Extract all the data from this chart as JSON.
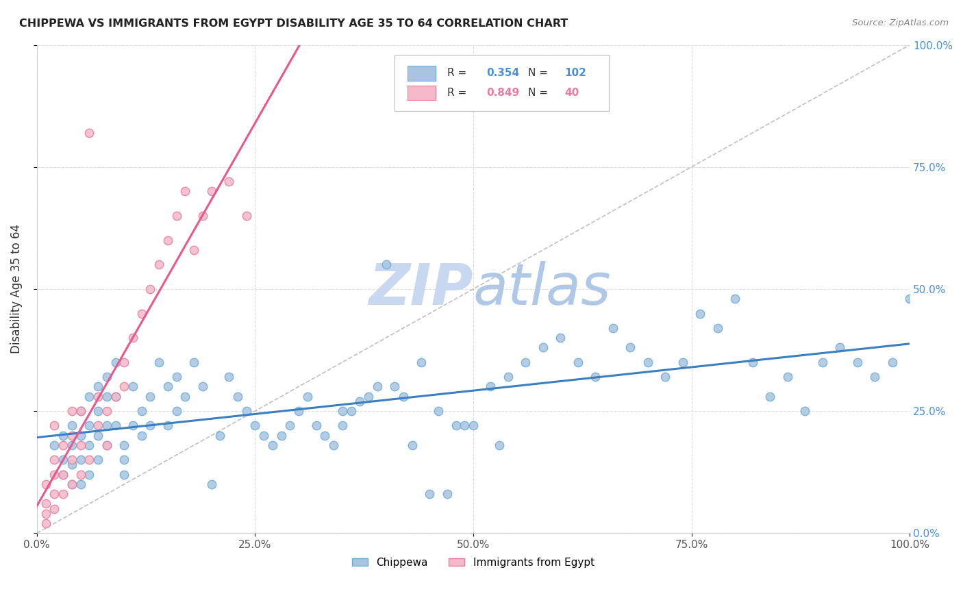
{
  "title": "CHIPPEWA VS IMMIGRANTS FROM EGYPT DISABILITY AGE 35 TO 64 CORRELATION CHART",
  "source": "Source: ZipAtlas.com",
  "ylabel_label": "Disability Age 35 to 64",
  "xlim": [
    0,
    1
  ],
  "ylim": [
    0,
    1
  ],
  "chippewa_color": "#a8c4e0",
  "chippewa_edge_color": "#6aaed6",
  "egypt_color": "#f4b8c8",
  "egypt_edge_color": "#e87da0",
  "trend_blue_color": "#3a7fc1",
  "trend_pink_color": "#e8588a",
  "trend_diagonal_color": "#c0c0c0",
  "R_chippewa": 0.354,
  "N_chippewa": 102,
  "R_egypt": 0.849,
  "N_egypt": 40,
  "chippewa_x": [
    0.02,
    0.03,
    0.03,
    0.03,
    0.04,
    0.04,
    0.04,
    0.04,
    0.05,
    0.05,
    0.05,
    0.05,
    0.06,
    0.06,
    0.06,
    0.06,
    0.07,
    0.07,
    0.07,
    0.07,
    0.08,
    0.08,
    0.08,
    0.08,
    0.09,
    0.09,
    0.09,
    0.1,
    0.1,
    0.1,
    0.11,
    0.11,
    0.12,
    0.12,
    0.13,
    0.13,
    0.14,
    0.15,
    0.15,
    0.16,
    0.16,
    0.17,
    0.18,
    0.19,
    0.2,
    0.21,
    0.22,
    0.23,
    0.24,
    0.25,
    0.26,
    0.27,
    0.28,
    0.29,
    0.3,
    0.31,
    0.32,
    0.33,
    0.34,
    0.35,
    0.37,
    0.39,
    0.4,
    0.42,
    0.44,
    0.46,
    0.48,
    0.5,
    0.52,
    0.54,
    0.56,
    0.58,
    0.6,
    0.62,
    0.64,
    0.66,
    0.68,
    0.7,
    0.72,
    0.74,
    0.76,
    0.78,
    0.8,
    0.82,
    0.84,
    0.86,
    0.88,
    0.9,
    0.92,
    0.94,
    0.96,
    0.98,
    1.0,
    0.35,
    0.36,
    0.38,
    0.41,
    0.43,
    0.45,
    0.47,
    0.49,
    0.53
  ],
  "chippewa_y": [
    0.18,
    0.2,
    0.15,
    0.12,
    0.22,
    0.18,
    0.14,
    0.1,
    0.25,
    0.2,
    0.15,
    0.1,
    0.28,
    0.22,
    0.18,
    0.12,
    0.3,
    0.25,
    0.2,
    0.15,
    0.32,
    0.28,
    0.22,
    0.18,
    0.35,
    0.28,
    0.22,
    0.18,
    0.15,
    0.12,
    0.3,
    0.22,
    0.25,
    0.2,
    0.28,
    0.22,
    0.35,
    0.3,
    0.22,
    0.32,
    0.25,
    0.28,
    0.35,
    0.3,
    0.1,
    0.2,
    0.32,
    0.28,
    0.25,
    0.22,
    0.2,
    0.18,
    0.2,
    0.22,
    0.25,
    0.28,
    0.22,
    0.2,
    0.18,
    0.25,
    0.27,
    0.3,
    0.55,
    0.28,
    0.35,
    0.25,
    0.22,
    0.22,
    0.3,
    0.32,
    0.35,
    0.38,
    0.4,
    0.35,
    0.32,
    0.42,
    0.38,
    0.35,
    0.32,
    0.35,
    0.45,
    0.42,
    0.48,
    0.35,
    0.28,
    0.32,
    0.25,
    0.35,
    0.38,
    0.35,
    0.32,
    0.35,
    0.48,
    0.22,
    0.25,
    0.28,
    0.3,
    0.18,
    0.08,
    0.08,
    0.22,
    0.18
  ],
  "egypt_x": [
    0.01,
    0.01,
    0.01,
    0.01,
    0.02,
    0.02,
    0.02,
    0.02,
    0.02,
    0.03,
    0.03,
    0.03,
    0.04,
    0.04,
    0.04,
    0.04,
    0.05,
    0.05,
    0.05,
    0.06,
    0.06,
    0.07,
    0.07,
    0.08,
    0.08,
    0.09,
    0.1,
    0.1,
    0.11,
    0.12,
    0.13,
    0.14,
    0.15,
    0.16,
    0.17,
    0.18,
    0.19,
    0.2,
    0.22,
    0.24
  ],
  "egypt_y": [
    0.02,
    0.04,
    0.06,
    0.1,
    0.05,
    0.08,
    0.12,
    0.15,
    0.22,
    0.08,
    0.12,
    0.18,
    0.1,
    0.15,
    0.2,
    0.25,
    0.12,
    0.18,
    0.25,
    0.15,
    0.82,
    0.22,
    0.28,
    0.18,
    0.25,
    0.28,
    0.3,
    0.35,
    0.4,
    0.45,
    0.5,
    0.55,
    0.6,
    0.65,
    0.7,
    0.58,
    0.65,
    0.7,
    0.72,
    0.65
  ],
  "marker_size": 80,
  "grid_color": "#dddddd",
  "background_color": "#ffffff",
  "watermark_zip_color": "#c8d8f0",
  "watermark_atlas_color": "#b0c8e8",
  "watermark_fontsize": 60
}
